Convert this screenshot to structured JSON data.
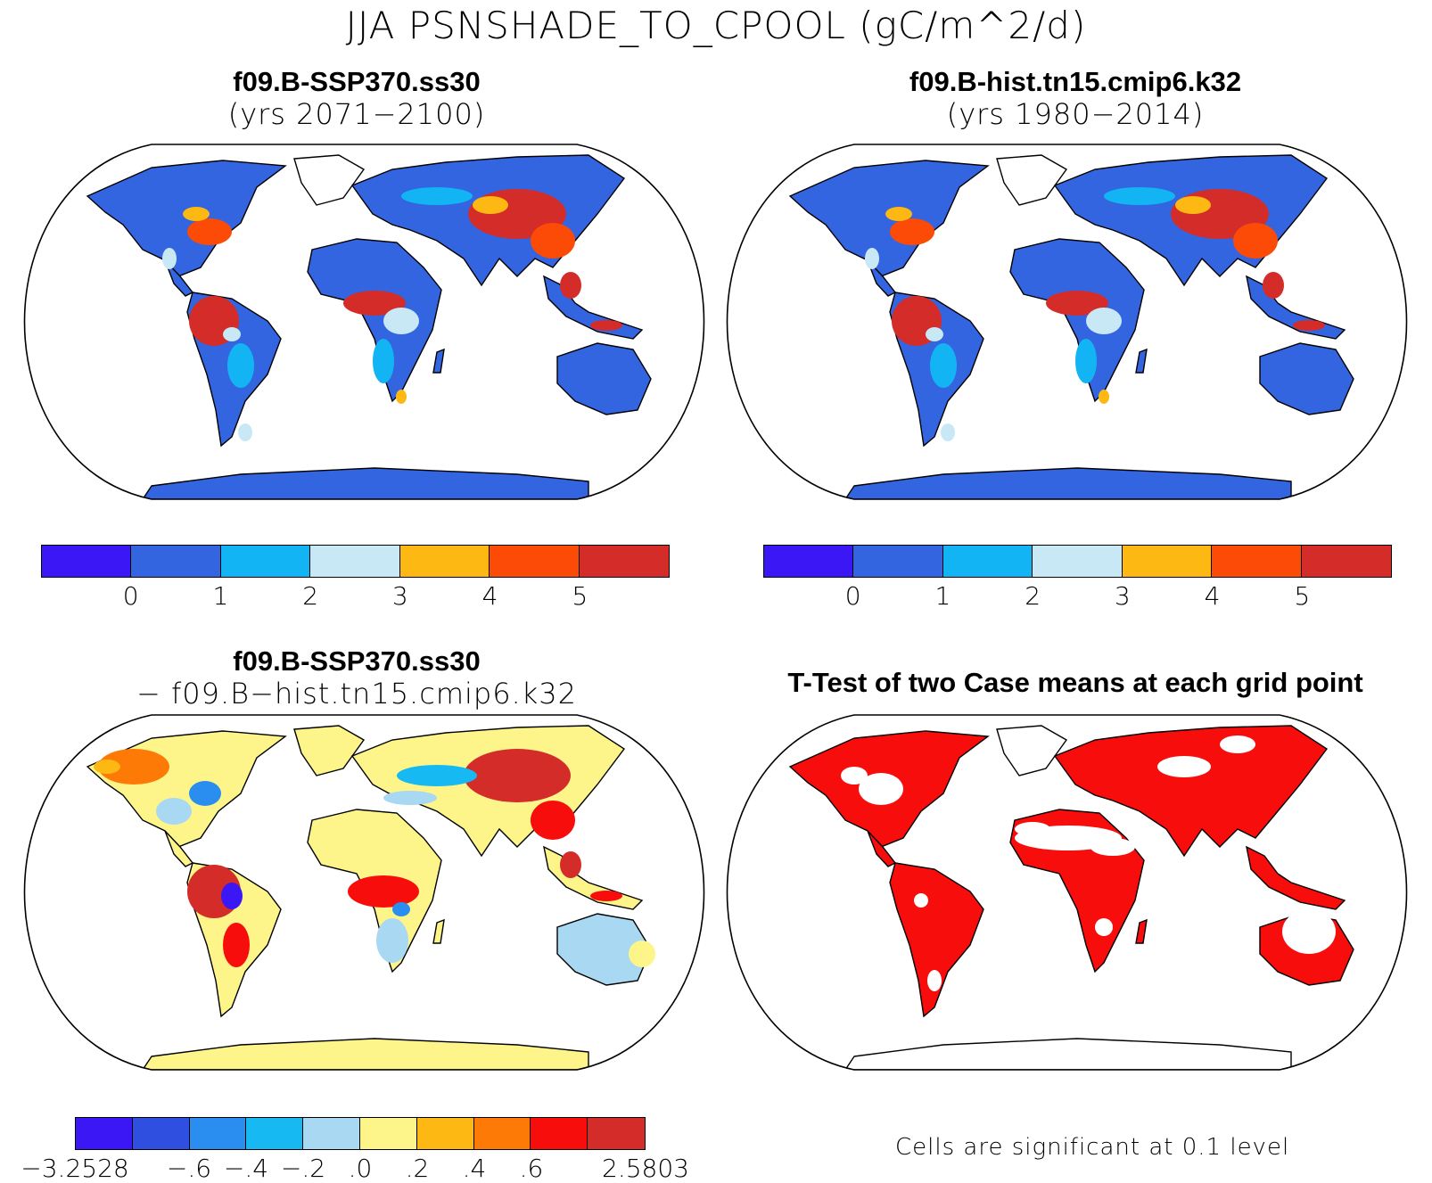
{
  "title": "JJA PSNSHADE_TO_CPOOL (gC/m^2/d)",
  "panels": [
    {
      "id": "tl",
      "line1": "f09.B-SSP370.ss30",
      "line2": "(yrs 2071−2100)",
      "colorbar": {
        "colors": [
          "#3b17f5",
          "#3465e0",
          "#13b4f3",
          "#c8e8f6",
          "#fdb813",
          "#fb4b06",
          "#d42c28"
        ],
        "ticks": [
          "0",
          "1",
          "2",
          "3",
          "4",
          "5"
        ]
      }
    },
    {
      "id": "tr",
      "line1": "f09.B-hist.tn15.cmip6.k32",
      "line2": "(yrs 1980−2014)",
      "colorbar": {
        "colors": [
          "#3b17f5",
          "#3465e0",
          "#13b4f3",
          "#c8e8f6",
          "#fdb813",
          "#fb4b06",
          "#d42c28"
        ],
        "ticks": [
          "0",
          "1",
          "2",
          "3",
          "4",
          "5"
        ]
      }
    },
    {
      "id": "bl",
      "line1": "f09.B-SSP370.ss30",
      "line2": "− f09.B−hist.tn15.cmip6.k32",
      "colorbar": {
        "colors": [
          "#3b17f5",
          "#2f4fe0",
          "#2a8ef0",
          "#16b9f2",
          "#a8d8f2",
          "#fdf58a",
          "#fdb813",
          "#fd7a06",
          "#f70d0c",
          "#d42c28"
        ],
        "ticks": [
          "−3.2528",
          "−.6",
          "−.4",
          "−.2",
          ".0",
          ".2",
          ".4",
          ".6",
          "2.5803"
        ]
      }
    },
    {
      "id": "br",
      "line1": "T-Test of two Case means at each grid point",
      "note": "Cells are significant at 0.1 level"
    }
  ]
}
